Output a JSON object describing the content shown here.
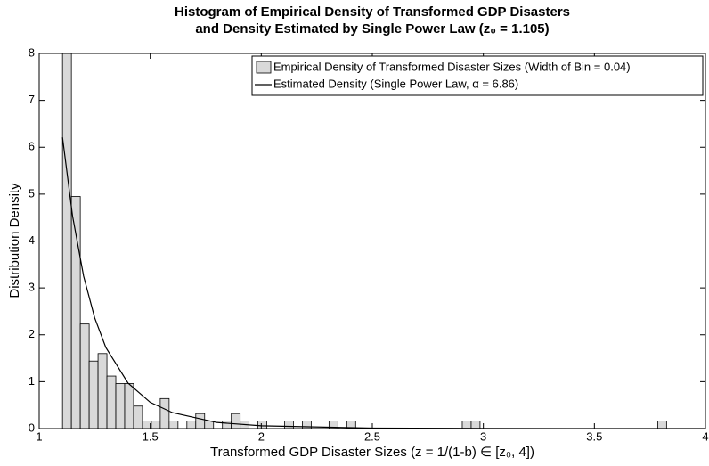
{
  "chart_data": {
    "type": "histogram",
    "title": [
      "Histogram of Empirical Density of Transformed GDP Disasters",
      "and Density Estimated by Single Power Law (z₀ = 1.105)"
    ],
    "xlabel": "Transformed GDP Disaster Sizes (z = 1/(1-b) ∈ [z₀, 4])",
    "ylabel": "Distribution Density",
    "name": "Empirical Density of Transformed Disaster Sizes (Width of Bin = 0.04)",
    "color": "#d9d9d9",
    "bins": [
      1.105,
      1.145,
      1.185,
      1.225,
      1.265,
      1.305,
      1.345,
      1.385,
      1.425,
      1.465,
      1.505,
      1.545,
      1.585,
      1.625,
      1.665,
      1.705,
      1.745,
      1.785,
      1.825,
      1.865,
      1.905,
      1.945,
      1.985,
      2.025,
      2.065,
      2.105,
      2.145,
      2.185,
      2.225,
      2.265,
      2.305,
      2.345,
      2.385,
      2.425,
      2.465,
      2.505,
      2.545,
      2.585,
      2.625,
      2.665,
      2.705,
      2.745,
      2.785,
      2.825,
      2.865,
      2.905,
      2.945,
      2.985,
      3.025,
      3.065,
      3.105,
      3.145,
      3.185,
      3.225,
      3.265,
      3.305,
      3.345,
      3.385,
      3.425,
      3.465,
      3.505,
      3.545,
      3.585,
      3.625,
      3.665,
      3.705,
      3.745,
      3.785,
      3.825
    ],
    "counts": [
      8.0,
      4.95,
      2.23,
      1.44,
      1.6,
      1.12,
      0.96,
      0.96,
      0.48,
      0.16,
      0.16,
      0.64,
      0.16,
      0,
      0.16,
      0.32,
      0.16,
      0,
      0.16,
      0.32,
      0.16,
      0,
      0.16,
      0,
      0,
      0.16,
      0,
      0.16,
      0,
      0,
      0.16,
      0,
      0.16,
      0,
      0,
      0,
      0,
      0,
      0,
      0,
      0,
      0,
      0,
      0,
      0,
      0.16,
      0.16,
      0,
      0,
      0,
      0,
      0,
      0,
      0,
      0,
      0,
      0,
      0,
      0,
      0,
      0,
      0,
      0,
      0,
      0,
      0,
      0,
      0.16
    ],
    "line": {
      "name": "Estimated Density (Single Power Law, α = 6.86)",
      "color": "#000000",
      "x": [
        1.105,
        1.15,
        1.2,
        1.25,
        1.3,
        1.4,
        1.5,
        1.6,
        1.8,
        2,
        2.5,
        3,
        3.5,
        4
      ],
      "values": [
        6.21,
        4.54,
        3.25,
        2.36,
        1.73,
        0.97,
        0.56,
        0.34,
        0.13,
        0.06,
        0.01,
        0.002,
        0.0007,
        0.0003
      ]
    },
    "xlim": [
      1,
      4
    ],
    "xticks": [
      1,
      1.5,
      2,
      2.5,
      3,
      3.5,
      4
    ],
    "ylim": [
      0,
      8
    ],
    "yticks": [
      0,
      1,
      2,
      3,
      4,
      5,
      6,
      7,
      8
    ],
    "legend": "northeast"
  }
}
